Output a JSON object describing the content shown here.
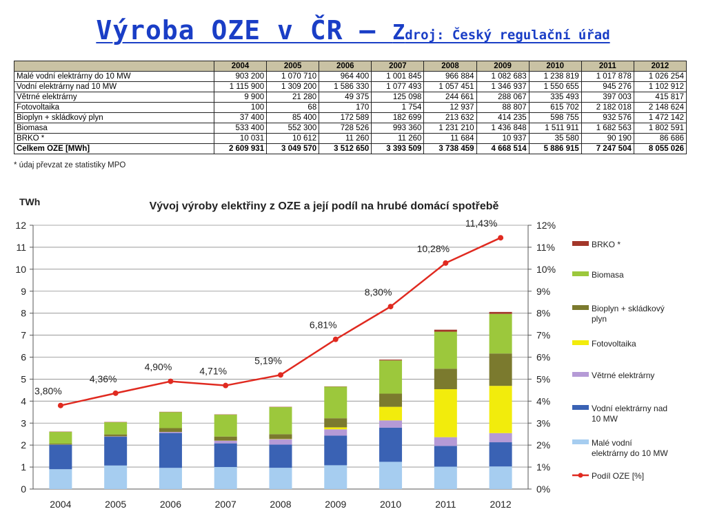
{
  "slide": {
    "title_main": "Výroba OZE v ČR – ",
    "title_source_first": "Z",
    "title_source_rest": "droj: Český regulační úřad"
  },
  "table": {
    "years": [
      "2004",
      "2005",
      "2006",
      "2007",
      "2008",
      "2009",
      "2010",
      "2011",
      "2012"
    ],
    "rows": [
      {
        "label": "Malé vodní elektrárny do 10 MW",
        "values": [
          "903 200",
          "1 070 710",
          "964 400",
          "1 001 845",
          "966 884",
          "1 082 683",
          "1 238 819",
          "1 017 878",
          "1 026 254"
        ]
      },
      {
        "label": "Vodní elektrárny nad 10 MW",
        "values": [
          "1 115 900",
          "1 309 200",
          "1 586 330",
          "1 077 493",
          "1 057 451",
          "1 346 937",
          "1 550 655",
          "945 276",
          "1 102 912"
        ]
      },
      {
        "label": "Větrné elektrárny",
        "values": [
          "9 900",
          "21 280",
          "49 375",
          "125 098",
          "244 661",
          "288 067",
          "335 493",
          "397 003",
          "415 817"
        ]
      },
      {
        "label": "Fotovoltaika",
        "values": [
          "100",
          "68",
          "170",
          "1 754",
          "12 937",
          "88 807",
          "615 702",
          "2 182 018",
          "2 148 624"
        ]
      },
      {
        "label": "Bioplyn + skládkový plyn",
        "values": [
          "37 400",
          "85 400",
          "172 589",
          "182 699",
          "213 632",
          "414 235",
          "598 755",
          "932 576",
          "1 472 142"
        ]
      },
      {
        "label": "Biomasa",
        "values": [
          "533 400",
          "552 300",
          "728 526",
          "993 360",
          "1 231 210",
          "1 436 848",
          "1 511 911",
          "1 682 563",
          "1 802 591"
        ]
      },
      {
        "label": "BRKO *",
        "values": [
          "10 031",
          "10 612",
          "11 260",
          "11 260",
          "11 684",
          "10 937",
          "35 580",
          "90 190",
          "86 686"
        ]
      }
    ],
    "total": {
      "label": "Celkem OZE [MWh]",
      "values": [
        "2 609 931",
        "3 049 570",
        "3 512 650",
        "3 393 509",
        "3 738 459",
        "4 668 514",
        "5 886 915",
        "7 247 504",
        "8 055 026"
      ]
    },
    "footnote": "* údaj převzat ze statistiky MPO"
  },
  "chart_data": {
    "type": "bar",
    "stacked": true,
    "title": "Vývoj výroby elektřiny z OZE a její podíl na hrubé domácí spotřebě",
    "ylabel": "TWh",
    "categories": [
      "2004",
      "2005",
      "2006",
      "2007",
      "2008",
      "2009",
      "2010",
      "2011",
      "2012"
    ],
    "ylim": [
      0,
      12
    ],
    "y_ticks": [
      "0",
      "1",
      "2",
      "3",
      "4",
      "5",
      "6",
      "7",
      "8",
      "9",
      "10",
      "11",
      "12"
    ],
    "y2lim": [
      0,
      12
    ],
    "y2_ticks": [
      "0%",
      "1%",
      "2%",
      "3%",
      "4%",
      "5%",
      "6%",
      "7%",
      "8%",
      "9%",
      "10%",
      "11%",
      "12%"
    ],
    "grid": true,
    "legend_position": "right",
    "series": [
      {
        "name": "Malé vodní elektrárny do 10 MW",
        "color": "#a6cdf0",
        "values": [
          0.903,
          1.071,
          0.964,
          1.002,
          0.967,
          1.083,
          1.239,
          1.018,
          1.026
        ]
      },
      {
        "name": "Vodní elektrárny nad 10 MW",
        "color": "#3a62b4",
        "values": [
          1.116,
          1.309,
          1.586,
          1.077,
          1.057,
          1.347,
          1.551,
          0.945,
          1.103
        ]
      },
      {
        "name": "Větrné elektrárny",
        "color": "#b59ad6",
        "values": [
          0.01,
          0.021,
          0.049,
          0.125,
          0.245,
          0.288,
          0.335,
          0.397,
          0.416
        ]
      },
      {
        "name": "Fotovoltaika",
        "color": "#f2ec0c",
        "values": [
          0.0001,
          0.0001,
          0.0002,
          0.002,
          0.013,
          0.089,
          0.616,
          2.182,
          2.149
        ]
      },
      {
        "name": "Bioplyn + skládkový plyn",
        "color": "#7b7a2e",
        "values": [
          0.037,
          0.085,
          0.173,
          0.183,
          0.214,
          0.414,
          0.599,
          0.933,
          1.472
        ]
      },
      {
        "name": "Biomasa",
        "color": "#9cc83c",
        "values": [
          0.533,
          0.552,
          0.729,
          0.993,
          1.231,
          1.437,
          1.512,
          1.683,
          1.803
        ]
      },
      {
        "name": "BRKO *",
        "color": "#a3372a",
        "values": [
          0.01,
          0.011,
          0.011,
          0.011,
          0.012,
          0.011,
          0.036,
          0.09,
          0.087
        ]
      }
    ],
    "line_series": {
      "name": "Podíl OZE [%]",
      "color": "#e02a20",
      "values": [
        3.8,
        4.36,
        4.9,
        4.71,
        5.19,
        6.81,
        8.3,
        10.28,
        11.43
      ],
      "labels": [
        "3,80%",
        "4,36%",
        "4,90%",
        "4,71%",
        "5,19%",
        "6,81%",
        "8,30%",
        "10,28%",
        "11,43%"
      ]
    },
    "legend": [
      {
        "name": "BRKO *",
        "color": "#a3372a",
        "kind": "box"
      },
      {
        "name": "Biomasa",
        "color": "#9cc83c",
        "kind": "box"
      },
      {
        "name": "Bioplyn + skládkový plyn",
        "color": "#7b7a2e",
        "kind": "box",
        "lines": [
          "Bioplyn + skládkový",
          "plyn"
        ]
      },
      {
        "name": "Fotovoltaika",
        "color": "#f2ec0c",
        "kind": "box"
      },
      {
        "name": "Větrné elektrárny",
        "color": "#b59ad6",
        "kind": "box"
      },
      {
        "name": "Vodní elektrárny nad 10 MW",
        "color": "#3a62b4",
        "kind": "box",
        "lines": [
          "Vodní elektrárny nad",
          "10 MW"
        ]
      },
      {
        "name": "Malé vodní elektrárny do 10 MW",
        "color": "#a6cdf0",
        "kind": "box",
        "lines": [
          "Malé vodní",
          "elektrárny do 10 MW"
        ]
      },
      {
        "name": "Podíl OZE [%]",
        "color": "#e02a20",
        "kind": "line"
      }
    ]
  }
}
